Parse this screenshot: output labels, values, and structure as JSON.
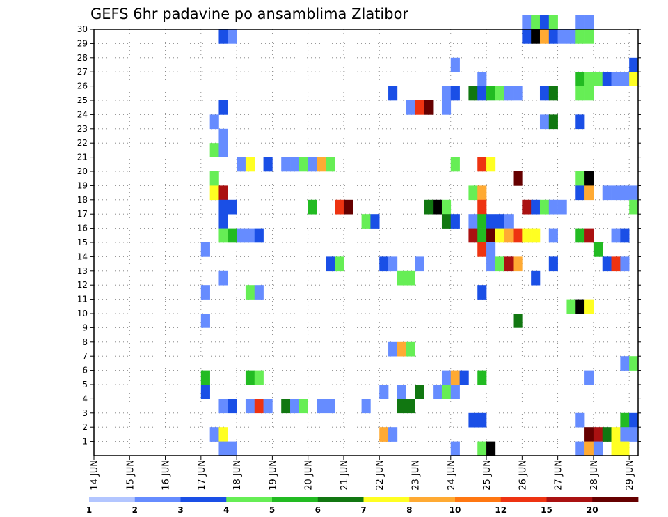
{
  "chart_data": {
    "type": "heatmap",
    "title": "GEFS 6hr padavine po ansamblima Zlatibor",
    "x_tick_labels": [
      "14 JUN",
      "15 JUN",
      "16 JUN",
      "17 JUN",
      "18 JUN",
      "19 JUN",
      "20 JUN",
      "21 JUN",
      "22 JUN",
      "23 JUN",
      "24 JUN",
      "25 JUN",
      "26 JUN",
      "27 JUN",
      "28 JUN",
      "29 JUN"
    ],
    "y_tick_labels": [
      "1",
      "2",
      "3",
      "4",
      "5",
      "6",
      "7",
      "8",
      "9",
      "10",
      "11",
      "12",
      "13",
      "14",
      "15",
      "16",
      "17",
      "18",
      "19",
      "20",
      "21",
      "22",
      "23",
      "24",
      "25",
      "26",
      "27",
      "28",
      "29",
      "30"
    ],
    "xlim": [
      0,
      61
    ],
    "ylim": [
      0,
      30
    ],
    "grid": true,
    "colorbar": {
      "labels": [
        "1",
        "2",
        "3",
        "4",
        "5",
        "6",
        "7",
        "8",
        "10",
        "12",
        "15",
        "20"
      ],
      "colors": [
        "#b3c6ff",
        "#668cff",
        "#1a4fe6",
        "#66ee55",
        "#22bb22",
        "#117711",
        "#ffff22",
        "#ffaa33",
        "#ff7711",
        "#ee3311",
        "#aa1111",
        "#660000"
      ]
    },
    "cells": [
      [
        48,
        30,
        1
      ],
      [
        49,
        30,
        3
      ],
      [
        50,
        30,
        2
      ],
      [
        51,
        30,
        3
      ],
      [
        54,
        30,
        1
      ],
      [
        55,
        30,
        1
      ],
      [
        14,
        29,
        2
      ],
      [
        15,
        29,
        1
      ],
      [
        48,
        29,
        2
      ],
      [
        49,
        29,
        12
      ],
      [
        50,
        29,
        7
      ],
      [
        51,
        29,
        2
      ],
      [
        52,
        29,
        1
      ],
      [
        53,
        29,
        1
      ],
      [
        54,
        29,
        3
      ],
      [
        55,
        29,
        3
      ],
      [
        40,
        27,
        1
      ],
      [
        60,
        27,
        2
      ],
      [
        43,
        26,
        1
      ],
      [
        54,
        26,
        4
      ],
      [
        55,
        26,
        3
      ],
      [
        56,
        26,
        3
      ],
      [
        57,
        26,
        2
      ],
      [
        58,
        26,
        1
      ],
      [
        59,
        26,
        1
      ],
      [
        60,
        26,
        6
      ],
      [
        33,
        25,
        2
      ],
      [
        39,
        25,
        1
      ],
      [
        40,
        25,
        2
      ],
      [
        42,
        25,
        5
      ],
      [
        43,
        25,
        2
      ],
      [
        44,
        25,
        4
      ],
      [
        45,
        25,
        3
      ],
      [
        46,
        25,
        1
      ],
      [
        47,
        25,
        1
      ],
      [
        50,
        25,
        2
      ],
      [
        51,
        25,
        5
      ],
      [
        54,
        25,
        3
      ],
      [
        55,
        25,
        3
      ],
      [
        14,
        24,
        2
      ],
      [
        35,
        24,
        1
      ],
      [
        36,
        24,
        9
      ],
      [
        37,
        24,
        11
      ],
      [
        39,
        24,
        1
      ],
      [
        13,
        23,
        1
      ],
      [
        50,
        23,
        1
      ],
      [
        51,
        23,
        5
      ],
      [
        54,
        23,
        2
      ],
      [
        14,
        22,
        1
      ],
      [
        13,
        21,
        3
      ],
      [
        14,
        21,
        1
      ],
      [
        16,
        20,
        1
      ],
      [
        17,
        20,
        6
      ],
      [
        19,
        20,
        2
      ],
      [
        21,
        20,
        1
      ],
      [
        22,
        20,
        1
      ],
      [
        23,
        20,
        3
      ],
      [
        24,
        20,
        1
      ],
      [
        25,
        20,
        7
      ],
      [
        26,
        20,
        3
      ],
      [
        40,
        20,
        3
      ],
      [
        43,
        20,
        9
      ],
      [
        44,
        20,
        6
      ],
      [
        13,
        19,
        3
      ],
      [
        47,
        19,
        11
      ],
      [
        54,
        19,
        3
      ],
      [
        55,
        19,
        12
      ],
      [
        13,
        18,
        6
      ],
      [
        14,
        18,
        10
      ],
      [
        42,
        18,
        3
      ],
      [
        43,
        18,
        7
      ],
      [
        54,
        18,
        2
      ],
      [
        55,
        18,
        7
      ],
      [
        57,
        18,
        1
      ],
      [
        58,
        18,
        1
      ],
      [
        59,
        18,
        1
      ],
      [
        60,
        18,
        1
      ],
      [
        14,
        17,
        2
      ],
      [
        15,
        17,
        2
      ],
      [
        24,
        17,
        4
      ],
      [
        27,
        17,
        9
      ],
      [
        28,
        17,
        11
      ],
      [
        37,
        17,
        5
      ],
      [
        38,
        17,
        12
      ],
      [
        39,
        17,
        3
      ],
      [
        43,
        17,
        9
      ],
      [
        48,
        17,
        10
      ],
      [
        49,
        17,
        2
      ],
      [
        50,
        17,
        3
      ],
      [
        51,
        17,
        1
      ],
      [
        52,
        17,
        1
      ],
      [
        60,
        17,
        3
      ],
      [
        14,
        16,
        2
      ],
      [
        30,
        16,
        3
      ],
      [
        31,
        16,
        2
      ],
      [
        39,
        16,
        5
      ],
      [
        40,
        16,
        2
      ],
      [
        42,
        16,
        1
      ],
      [
        43,
        16,
        4
      ],
      [
        44,
        16,
        2
      ],
      [
        45,
        16,
        2
      ],
      [
        46,
        16,
        1
      ],
      [
        14,
        15,
        3
      ],
      [
        15,
        15,
        4
      ],
      [
        16,
        15,
        1
      ],
      [
        17,
        15,
        1
      ],
      [
        18,
        15,
        2
      ],
      [
        42,
        15,
        10
      ],
      [
        43,
        15,
        4
      ],
      [
        44,
        15,
        11
      ],
      [
        45,
        15,
        6
      ],
      [
        46,
        15,
        7
      ],
      [
        47,
        15,
        9
      ],
      [
        48,
        15,
        6
      ],
      [
        49,
        15,
        6
      ],
      [
        51,
        15,
        1
      ],
      [
        54,
        15,
        4
      ],
      [
        55,
        15,
        10
      ],
      [
        58,
        15,
        1
      ],
      [
        59,
        15,
        2
      ],
      [
        12,
        14,
        1
      ],
      [
        43,
        14,
        9
      ],
      [
        44,
        14,
        1
      ],
      [
        56,
        14,
        4
      ],
      [
        26,
        13,
        2
      ],
      [
        27,
        13,
        3
      ],
      [
        32,
        13,
        2
      ],
      [
        33,
        13,
        1
      ],
      [
        36,
        13,
        1
      ],
      [
        44,
        13,
        1
      ],
      [
        45,
        13,
        3
      ],
      [
        46,
        13,
        10
      ],
      [
        47,
        13,
        7
      ],
      [
        51,
        13,
        2
      ],
      [
        57,
        13,
        2
      ],
      [
        58,
        13,
        9
      ],
      [
        59,
        13,
        1
      ],
      [
        14,
        12,
        1
      ],
      [
        34,
        12,
        3
      ],
      [
        35,
        12,
        3
      ],
      [
        49,
        12,
        2
      ],
      [
        12,
        11,
        1
      ],
      [
        17,
        11,
        3
      ],
      [
        18,
        11,
        1
      ],
      [
        43,
        11,
        2
      ],
      [
        53,
        10,
        3
      ],
      [
        54,
        10,
        12
      ],
      [
        55,
        10,
        6
      ],
      [
        12,
        9,
        1
      ],
      [
        47,
        9,
        5
      ],
      [
        33,
        7,
        1
      ],
      [
        34,
        7,
        7
      ],
      [
        35,
        7,
        3
      ],
      [
        59,
        6,
        1
      ],
      [
        60,
        6,
        3
      ],
      [
        12,
        5,
        4
      ],
      [
        17,
        5,
        4
      ],
      [
        18,
        5,
        3
      ],
      [
        39,
        5,
        1
      ],
      [
        40,
        5,
        7
      ],
      [
        41,
        5,
        2
      ],
      [
        43,
        5,
        4
      ],
      [
        55,
        5,
        1
      ],
      [
        12,
        4,
        2
      ],
      [
        32,
        4,
        1
      ],
      [
        34,
        4,
        1
      ],
      [
        36,
        4,
        5
      ],
      [
        38,
        4,
        1
      ],
      [
        39,
        4,
        3
      ],
      [
        40,
        4,
        1
      ],
      [
        14,
        3,
        1
      ],
      [
        15,
        3,
        2
      ],
      [
        17,
        3,
        1
      ],
      [
        18,
        3,
        9
      ],
      [
        19,
        3,
        1
      ],
      [
        21,
        3,
        5
      ],
      [
        22,
        3,
        1
      ],
      [
        23,
        3,
        3
      ],
      [
        25,
        3,
        1
      ],
      [
        26,
        3,
        1
      ],
      [
        30,
        3,
        1
      ],
      [
        34,
        3,
        5
      ],
      [
        35,
        3,
        5
      ],
      [
        42,
        2,
        2
      ],
      [
        43,
        2,
        2
      ],
      [
        54,
        2,
        1
      ],
      [
        59,
        2,
        4
      ],
      [
        60,
        2,
        2
      ],
      [
        13,
        1,
        1
      ],
      [
        14,
        1,
        6
      ],
      [
        32,
        1,
        7
      ],
      [
        33,
        1,
        1
      ],
      [
        55,
        1,
        11
      ],
      [
        56,
        1,
        10
      ],
      [
        57,
        1,
        5
      ],
      [
        58,
        1,
        6
      ],
      [
        59,
        1,
        1
      ],
      [
        60,
        1,
        1
      ],
      [
        14,
        0,
        1
      ],
      [
        15,
        0,
        1
      ],
      [
        40,
        0,
        1
      ],
      [
        43,
        0,
        3
      ],
      [
        44,
        0,
        12
      ],
      [
        54,
        0,
        1
      ],
      [
        55,
        0,
        7
      ],
      [
        56,
        0,
        1
      ],
      [
        58,
        0,
        6
      ],
      [
        59,
        0,
        6
      ]
    ]
  }
}
